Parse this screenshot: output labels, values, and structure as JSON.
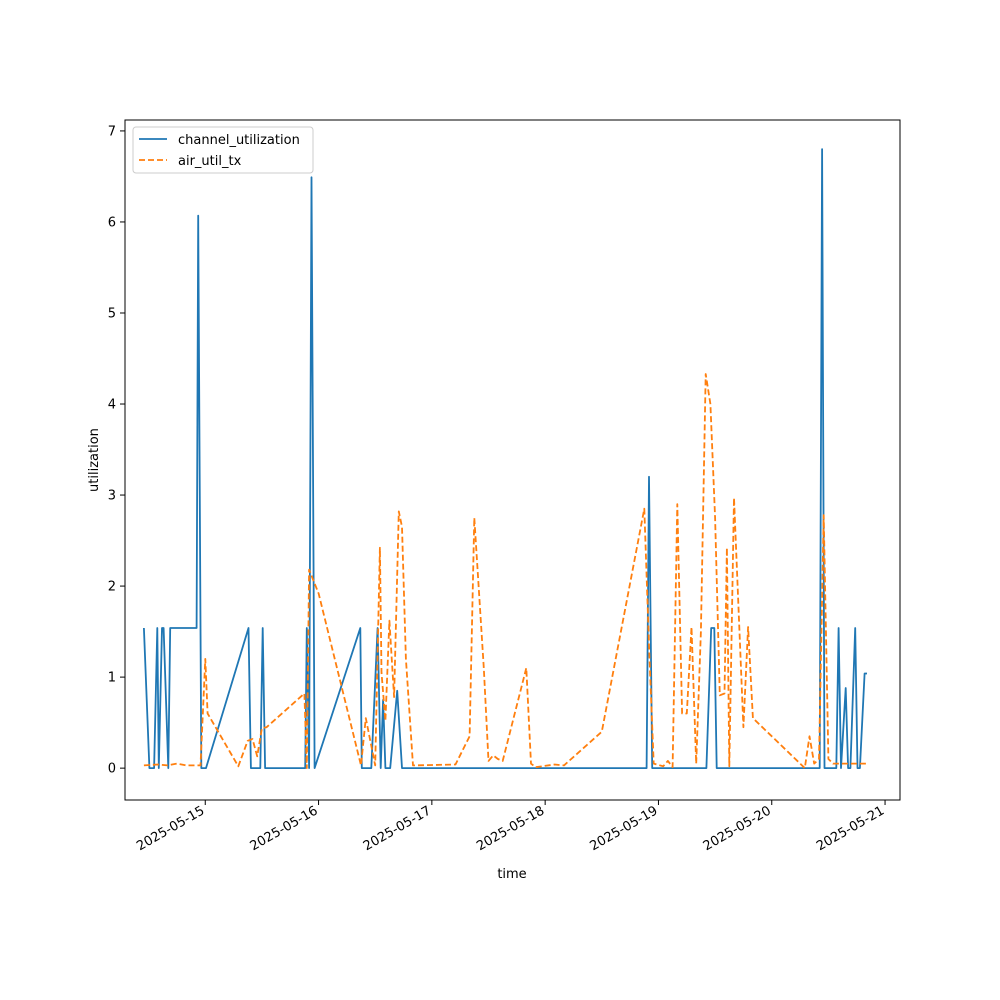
{
  "chart_data": {
    "type": "line",
    "title": "",
    "xlabel": "time",
    "ylabel": "utilization",
    "x_ticks": [
      "2025-05-15",
      "2025-05-16",
      "2025-05-17",
      "2025-05-18",
      "2025-05-19",
      "2025-05-20",
      "2025-05-21"
    ],
    "y_ticks": [
      "0",
      "1",
      "2",
      "3",
      "4",
      "5",
      "6",
      "7"
    ],
    "xlim": [
      "2025-05-14 07:00",
      "2025-05-21 03:10"
    ],
    "ylim": [
      -0.35,
      7.12
    ],
    "grid": false,
    "legend": "upper-left",
    "series": [
      {
        "name": "channel_utilization",
        "color": "#1f77b4",
        "style": "solid",
        "x": [
          "2025-05-14 11:00",
          "2025-05-14 12:10",
          "2025-05-14 13:10",
          "2025-05-14 13:50",
          "2025-05-14 14:10",
          "2025-05-14 14:50",
          "2025-05-14 15:10",
          "2025-05-14 16:10",
          "2025-05-14 16:35",
          "2025-05-14 17:10",
          "2025-05-14 22:10",
          "2025-05-14 22:30",
          "2025-05-14 23:10",
          "2025-05-15 00:10",
          "2025-05-15 09:10",
          "2025-05-15 09:40",
          "2025-05-15 11:40",
          "2025-05-15 12:10",
          "2025-05-15 12:40",
          "2025-05-15 21:10",
          "2025-05-15 21:30",
          "2025-05-15 22:00",
          "2025-05-15 22:30",
          "2025-05-15 23:10",
          "2025-05-16 08:50",
          "2025-05-16 09:10",
          "2025-05-16 11:10",
          "2025-05-16 12:30",
          "2025-05-16 13:10",
          "2025-05-16 13:40",
          "2025-05-16 14:10",
          "2025-05-16 15:10",
          "2025-05-16 16:40",
          "2025-05-16 17:40",
          "2025-05-16 18:10",
          "2025-05-16 19:10",
          "2025-05-18 21:30",
          "2025-05-18 22:00",
          "2025-05-18 22:40",
          "2025-05-19 10:10",
          "2025-05-19 11:10",
          "2025-05-19 11:50",
          "2025-05-19 12:20",
          "2025-05-19 13:10",
          "2025-05-20 10:10",
          "2025-05-20 10:40",
          "2025-05-20 11:10",
          "2025-05-20 13:40",
          "2025-05-20 14:10",
          "2025-05-20 14:40",
          "2025-05-20 15:40",
          "2025-05-20 16:10",
          "2025-05-20 16:40",
          "2025-05-20 17:40",
          "2025-05-20 18:10",
          "2025-05-20 18:40",
          "2025-05-20 19:40",
          "2025-05-20 20:10"
        ],
        "values": [
          1.54,
          0.0,
          0.0,
          1.54,
          0.0,
          1.54,
          1.54,
          0.0,
          1.54,
          1.54,
          1.54,
          6.07,
          0.0,
          0.0,
          1.54,
          0.0,
          0.0,
          1.54,
          0.0,
          0.0,
          1.54,
          0.0,
          6.49,
          0.0,
          1.54,
          0.0,
          0.0,
          1.54,
          0.0,
          0.75,
          0.0,
          0.0,
          0.85,
          0.0,
          0.0,
          0.0,
          0.0,
          3.2,
          0.0,
          0.0,
          1.54,
          1.54,
          0.0,
          0.0,
          0.0,
          6.8,
          0.0,
          0.0,
          1.54,
          0.0,
          0.88,
          0.0,
          0.0,
          1.54,
          0.0,
          0.0,
          1.04,
          1.04
        ]
      },
      {
        "name": "air_util_tx",
        "color": "#ff7f0e",
        "style": "dashed",
        "x": [
          "2025-05-14 11:00",
          "2025-05-14 14:00",
          "2025-05-14 16:00",
          "2025-05-14 18:00",
          "2025-05-14 20:00",
          "2025-05-14 23:00",
          "2025-05-15 00:00",
          "2025-05-15 00:30",
          "2025-05-15 07:00",
          "2025-05-15 09:00",
          "2025-05-15 10:00",
          "2025-05-15 11:00",
          "2025-05-15 12:00",
          "2025-05-15 13:00",
          "2025-05-15 21:00",
          "2025-05-15 21:30",
          "2025-05-15 22:00",
          "2025-05-16 00:00",
          "2025-05-16 09:00",
          "2025-05-16 10:00",
          "2025-05-16 12:00",
          "2025-05-16 13:00",
          "2025-05-16 13:20",
          "2025-05-16 14:10",
          "2025-05-16 15:00",
          "2025-05-16 16:00",
          "2025-05-16 17:00",
          "2025-05-16 17:40",
          "2025-05-16 18:30",
          "2025-05-16 20:00",
          "2025-05-17 05:00",
          "2025-05-17 08:00",
          "2025-05-17 09:00",
          "2025-05-17 11:00",
          "2025-05-17 12:00",
          "2025-05-17 13:00",
          "2025-05-17 14:00",
          "2025-05-17 15:00",
          "2025-05-17 20:00",
          "2025-05-17 21:00",
          "2025-05-17 22:00",
          "2025-05-18 02:00",
          "2025-05-18 04:00",
          "2025-05-18 12:00",
          "2025-05-18 21:00",
          "2025-05-18 22:00",
          "2025-05-18 23:00",
          "2025-05-19 01:00",
          "2025-05-19 02:00",
          "2025-05-19 03:00",
          "2025-05-19 04:00",
          "2025-05-19 05:00",
          "2025-05-19 06:00",
          "2025-05-19 07:00",
          "2025-05-19 08:00",
          "2025-05-19 09:00",
          "2025-05-19 10:00",
          "2025-05-19 11:00",
          "2025-05-19 12:00",
          "2025-05-19 13:00",
          "2025-05-19 14:00",
          "2025-05-19 14:30",
          "2025-05-19 15:00",
          "2025-05-19 16:00",
          "2025-05-19 18:00",
          "2025-05-19 19:00",
          "2025-05-19 20:00",
          "2025-05-20 07:00",
          "2025-05-20 08:00",
          "2025-05-20 09:00",
          "2025-05-20 10:00",
          "2025-05-20 11:00",
          "2025-05-20 12:00",
          "2025-05-20 13:00",
          "2025-05-20 15:00",
          "2025-05-20 16:00",
          "2025-05-20 17:00",
          "2025-05-20 18:00",
          "2025-05-20 19:00",
          "2025-05-20 20:00"
        ],
        "values": [
          0.03,
          0.04,
          0.03,
          0.05,
          0.03,
          0.03,
          1.2,
          0.6,
          0.02,
          0.3,
          0.32,
          0.13,
          0.44,
          0.45,
          0.82,
          0.0,
          2.18,
          1.92,
          0.03,
          0.55,
          0.03,
          2.42,
          1.05,
          0.52,
          1.62,
          0.78,
          2.82,
          2.65,
          1.2,
          0.03,
          0.04,
          0.35,
          2.75,
          1.1,
          0.08,
          0.14,
          0.1,
          0.08,
          1.1,
          0.05,
          0.01,
          0.04,
          0.03,
          0.4,
          2.85,
          1.35,
          0.05,
          0.02,
          0.08,
          0.01,
          2.9,
          0.6,
          0.6,
          1.55,
          0.05,
          1.5,
          4.33,
          4.0,
          2.75,
          0.8,
          0.82,
          2.42,
          0.02,
          2.97,
          0.45,
          1.55,
          0.55,
          0.0,
          0.35,
          0.05,
          0.1,
          2.78,
          0.1,
          0.05,
          0.05,
          0.05,
          0.05,
          0.05,
          0.05,
          0.05
        ]
      }
    ]
  }
}
